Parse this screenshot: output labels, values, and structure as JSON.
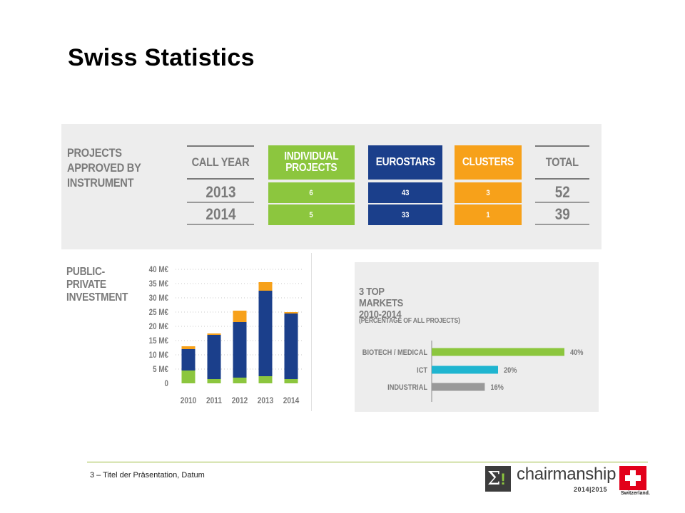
{
  "title": "Swiss Statistics",
  "footer": {
    "text": "3 – Titel der Präsentation, Datum",
    "logo": {
      "wordmark": "chairmanship",
      "years": "2014|2015",
      "country": "Switzerland.",
      "accent": "#8cc63e",
      "flag_color": "#e2001a"
    }
  },
  "chart_data": [
    {
      "type": "table",
      "title": "PROJECTS APPROVED BY INSTRUMENT",
      "title_lines": [
        "PROJECTS",
        "APPROVED BY",
        "INSTRUMENT"
      ],
      "columns": [
        {
          "header": "CALL YEAR",
          "header_lines": [
            "CALL YEAR"
          ],
          "color": "",
          "values": [
            "2013",
            "2014"
          ]
        },
        {
          "header": "INDIVIDUAL PROJECTS",
          "header_lines": [
            "INDIVIDUAL",
            "PROJECTS"
          ],
          "color": "#8cc63e",
          "values": [
            "6",
            "5"
          ]
        },
        {
          "header": "EUROSTARS",
          "header_lines": [
            "EUROSTARS"
          ],
          "color": "#1b3f8b",
          "values": [
            "43",
            "33"
          ]
        },
        {
          "header": "CLUSTERS",
          "header_lines": [
            "CLUSTERS"
          ],
          "color": "#f7a11a",
          "values": [
            "3",
            "1"
          ]
        },
        {
          "header": "TOTAL",
          "header_lines": [
            "TOTAL"
          ],
          "color": "",
          "values": [
            "52",
            "39"
          ]
        }
      ]
    },
    {
      "type": "bar",
      "stacked": true,
      "title": "PUBLIC-PRIVATE INVESTMENT",
      "title_lines": [
        "PUBLIC-",
        "PRIVATE",
        "INVESTMENT"
      ],
      "categories": [
        "2010",
        "2011",
        "2012",
        "2013",
        "2014"
      ],
      "yticks": [
        "0",
        "5 M€",
        "10 M€",
        "15 M€",
        "20 M€",
        "25 M€",
        "30 M€",
        "35 M€",
        "40 M€"
      ],
      "ylim": [
        0,
        40
      ],
      "grid": true,
      "series": [
        {
          "color": "#8cc63e",
          "values": [
            4.5,
            1.5,
            2,
            2.5,
            1.5
          ]
        },
        {
          "color": "#1b3f8b",
          "values": [
            7.5,
            15.5,
            19.5,
            30,
            23
          ]
        },
        {
          "color": "#f7a11a",
          "values": [
            1,
            0.5,
            4,
            3,
            0.5
          ]
        }
      ]
    },
    {
      "type": "bar",
      "orientation": "horizontal",
      "title": "3 TOP MARKETS 2010-2014",
      "title_lines": [
        "3 TOP",
        "MARKETS",
        "2010-2014"
      ],
      "subtitle": "(PERCENTAGE OF ALL PROJECTS)",
      "categories": [
        "BIOTECH / MEDICAL",
        "ICT",
        "INDUSTRIAL"
      ],
      "values": [
        40,
        20,
        16
      ],
      "value_labels": [
        "40%",
        "20%",
        "16%"
      ],
      "colors": [
        "#8cc63e",
        "#1fb5d0",
        "#999999"
      ],
      "xlim": [
        0,
        40
      ]
    }
  ]
}
